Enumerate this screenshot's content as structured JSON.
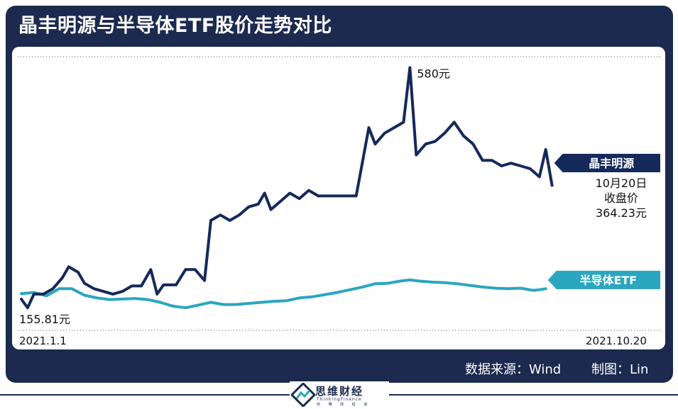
{
  "title": "晶丰明源与半导体ETF股价走势对比",
  "colors": {
    "frame": "#1b2a4e",
    "series1": "#15295a",
    "series2": "#2aa6c0"
  },
  "chart_data": {
    "type": "line",
    "title": "晶丰明源与半导体ETF股价走势对比",
    "x_start": "2021.1.1",
    "x_end": "2021.10.20",
    "grid": "dotted top and bottom boundary lines",
    "series": [
      {
        "name": "晶丰明源",
        "color": "#15295a",
        "start_label": "155.81元",
        "peak_label": "580元",
        "end_label_lines": [
          "10月20日",
          "收盘价",
          "364.23元"
        ],
        "values": [
          [
            0.0,
            155.81
          ],
          [
            0.01,
            140
          ],
          [
            0.02,
            165
          ],
          [
            0.035,
            165
          ],
          [
            0.05,
            175
          ],
          [
            0.065,
            195
          ],
          [
            0.075,
            215
          ],
          [
            0.09,
            205
          ],
          [
            0.1,
            185
          ],
          [
            0.115,
            175
          ],
          [
            0.13,
            170
          ],
          [
            0.145,
            165
          ],
          [
            0.16,
            170
          ],
          [
            0.175,
            180
          ],
          [
            0.19,
            180
          ],
          [
            0.205,
            210
          ],
          [
            0.215,
            165
          ],
          [
            0.225,
            182
          ],
          [
            0.245,
            182
          ],
          [
            0.26,
            210
          ],
          [
            0.275,
            210
          ],
          [
            0.29,
            190
          ],
          [
            0.3,
            300
          ],
          [
            0.315,
            310
          ],
          [
            0.33,
            300
          ],
          [
            0.345,
            310
          ],
          [
            0.36,
            325
          ],
          [
            0.375,
            330
          ],
          [
            0.385,
            350
          ],
          [
            0.395,
            320
          ],
          [
            0.41,
            335
          ],
          [
            0.425,
            350
          ],
          [
            0.44,
            340
          ],
          [
            0.455,
            355
          ],
          [
            0.47,
            345
          ],
          [
            0.49,
            345
          ],
          [
            0.53,
            345
          ],
          [
            0.55,
            470
          ],
          [
            0.56,
            440
          ],
          [
            0.575,
            460
          ],
          [
            0.59,
            470
          ],
          [
            0.605,
            480
          ],
          [
            0.615,
            580
          ],
          [
            0.625,
            420
          ],
          [
            0.64,
            440
          ],
          [
            0.655,
            445
          ],
          [
            0.67,
            460
          ],
          [
            0.685,
            480
          ],
          [
            0.7,
            455
          ],
          [
            0.715,
            440
          ],
          [
            0.73,
            410
          ],
          [
            0.745,
            410
          ],
          [
            0.76,
            400
          ],
          [
            0.775,
            405
          ],
          [
            0.79,
            400
          ],
          [
            0.805,
            395
          ],
          [
            0.82,
            380
          ],
          [
            0.83,
            430
          ],
          [
            0.84,
            364.23
          ]
        ]
      },
      {
        "name": "半导体ETF",
        "color": "#2aa6c0",
        "values": [
          [
            0.0,
            166
          ],
          [
            0.02,
            168
          ],
          [
            0.04,
            162
          ],
          [
            0.06,
            175
          ],
          [
            0.08,
            175
          ],
          [
            0.1,
            163
          ],
          [
            0.12,
            158
          ],
          [
            0.14,
            155
          ],
          [
            0.16,
            156
          ],
          [
            0.18,
            157
          ],
          [
            0.2,
            155
          ],
          [
            0.22,
            150
          ],
          [
            0.24,
            143
          ],
          [
            0.26,
            140
          ],
          [
            0.28,
            145
          ],
          [
            0.3,
            150
          ],
          [
            0.32,
            146
          ],
          [
            0.34,
            146
          ],
          [
            0.36,
            148
          ],
          [
            0.38,
            150
          ],
          [
            0.4,
            152
          ],
          [
            0.42,
            153
          ],
          [
            0.44,
            158
          ],
          [
            0.46,
            160
          ],
          [
            0.48,
            164
          ],
          [
            0.5,
            168
          ],
          [
            0.52,
            173
          ],
          [
            0.54,
            178
          ],
          [
            0.56,
            184
          ],
          [
            0.58,
            185
          ],
          [
            0.6,
            189
          ],
          [
            0.615,
            191
          ],
          [
            0.63,
            189
          ],
          [
            0.65,
            187
          ],
          [
            0.67,
            186
          ],
          [
            0.69,
            184
          ],
          [
            0.71,
            181
          ],
          [
            0.73,
            178
          ],
          [
            0.75,
            176
          ],
          [
            0.77,
            175
          ],
          [
            0.79,
            176
          ],
          [
            0.81,
            172
          ],
          [
            0.82,
            173
          ],
          [
            0.83,
            175
          ]
        ]
      }
    ],
    "legend": [
      {
        "text": "晶丰明源",
        "color": "#15295a"
      },
      {
        "text": "半导体ETF",
        "color": "#2aa6c0"
      }
    ]
  },
  "footer": {
    "source": "数据来源：Wind",
    "author": "制图：Lin"
  },
  "logo": {
    "cn": "思维财经",
    "en": "ThinkingFinance",
    "sub": "你 懂 财 经 道"
  }
}
